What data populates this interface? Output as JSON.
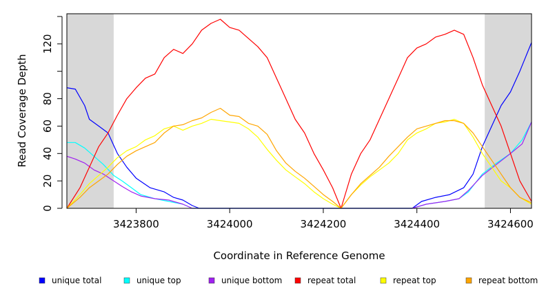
{
  "chart_data": {
    "type": "line",
    "title": "",
    "xlabel": "Coordinate in Reference Genome",
    "ylabel": "Read Coverage Depth",
    "xlim": [
      3423652,
      3424645
    ],
    "ylim": [
      0,
      142
    ],
    "x_ticks": [
      3423800,
      3424000,
      3424200,
      3424400,
      3424600
    ],
    "x_tick_labels": [
      "3423800",
      "3424000",
      "3424200",
      "3424400",
      "3424600"
    ],
    "y_ticks": [
      0,
      20,
      40,
      60,
      80,
      100,
      120,
      140
    ],
    "y_tick_labels": [
      "0",
      "20",
      "40",
      "60",
      "80",
      "",
      "120",
      ""
    ],
    "shaded_regions": [
      {
        "from": 3423652,
        "to": 3423752,
        "color": "#d8d8d8"
      },
      {
        "from": 3424545,
        "to": 3424645,
        "color": "#d8d8d8"
      }
    ],
    "grid": false,
    "legend_position": "bottom",
    "series": [
      {
        "name": "unique total",
        "color": "#0000ff",
        "points": [
          [
            3423652,
            88
          ],
          [
            3423670,
            87
          ],
          [
            3423690,
            75
          ],
          [
            3423700,
            65
          ],
          [
            3423720,
            60
          ],
          [
            3423740,
            55
          ],
          [
            3423760,
            40
          ],
          [
            3423780,
            30
          ],
          [
            3423800,
            22
          ],
          [
            3423830,
            15
          ],
          [
            3423860,
            12
          ],
          [
            3423880,
            8
          ],
          [
            3423900,
            6
          ],
          [
            3423920,
            2
          ],
          [
            3423935,
            0
          ],
          [
            3424390,
            0
          ],
          [
            3424410,
            5
          ],
          [
            3424440,
            8
          ],
          [
            3424470,
            10
          ],
          [
            3424500,
            15
          ],
          [
            3424520,
            25
          ],
          [
            3424540,
            45
          ],
          [
            3424560,
            60
          ],
          [
            3424580,
            75
          ],
          [
            3424600,
            85
          ],
          [
            3424620,
            100
          ],
          [
            3424645,
            121
          ]
        ]
      },
      {
        "name": "unique top",
        "color": "#00ffff",
        "points": [
          [
            3423652,
            48
          ],
          [
            3423670,
            48
          ],
          [
            3423690,
            44
          ],
          [
            3423710,
            38
          ],
          [
            3423730,
            32
          ],
          [
            3423752,
            24
          ],
          [
            3423770,
            20
          ],
          [
            3423790,
            15
          ],
          [
            3423810,
            10
          ],
          [
            3423840,
            7
          ],
          [
            3423870,
            5
          ],
          [
            3423900,
            3
          ],
          [
            3423920,
            0
          ],
          [
            3424390,
            0
          ],
          [
            3424420,
            3
          ],
          [
            3424460,
            5
          ],
          [
            3424490,
            7
          ],
          [
            3424510,
            12
          ],
          [
            3424540,
            25
          ],
          [
            3424570,
            33
          ],
          [
            3424600,
            40
          ],
          [
            3424625,
            50
          ],
          [
            3424645,
            63
          ]
        ]
      },
      {
        "name": "unique bottom",
        "color": "#a020f0",
        "points": [
          [
            3423652,
            38
          ],
          [
            3423670,
            36
          ],
          [
            3423690,
            33
          ],
          [
            3423710,
            28
          ],
          [
            3423730,
            25
          ],
          [
            3423752,
            20
          ],
          [
            3423770,
            16
          ],
          [
            3423790,
            12
          ],
          [
            3423810,
            9
          ],
          [
            3423840,
            7
          ],
          [
            3423870,
            6
          ],
          [
            3423900,
            3
          ],
          [
            3423920,
            0
          ],
          [
            3424390,
            0
          ],
          [
            3424420,
            3
          ],
          [
            3424460,
            5
          ],
          [
            3424490,
            7
          ],
          [
            3424510,
            13
          ],
          [
            3424540,
            24
          ],
          [
            3424570,
            32
          ],
          [
            3424600,
            40
          ],
          [
            3424625,
            47
          ],
          [
            3424645,
            63
          ]
        ]
      },
      {
        "name": "repeat total",
        "color": "#ff0000",
        "points": [
          [
            3423652,
            0
          ],
          [
            3423680,
            15
          ],
          [
            3423700,
            30
          ],
          [
            3423720,
            45
          ],
          [
            3423740,
            55
          ],
          [
            3423760,
            68
          ],
          [
            3423780,
            80
          ],
          [
            3423800,
            88
          ],
          [
            3423820,
            95
          ],
          [
            3423840,
            98
          ],
          [
            3423860,
            110
          ],
          [
            3423880,
            116
          ],
          [
            3423900,
            113
          ],
          [
            3423920,
            120
          ],
          [
            3423940,
            130
          ],
          [
            3423960,
            135
          ],
          [
            3423980,
            138
          ],
          [
            3424000,
            132
          ],
          [
            3424020,
            130
          ],
          [
            3424040,
            124
          ],
          [
            3424060,
            118
          ],
          [
            3424080,
            110
          ],
          [
            3424100,
            95
          ],
          [
            3424120,
            80
          ],
          [
            3424140,
            65
          ],
          [
            3424160,
            55
          ],
          [
            3424180,
            40
          ],
          [
            3424200,
            28
          ],
          [
            3424220,
            15
          ],
          [
            3424238,
            0
          ],
          [
            3424260,
            25
          ],
          [
            3424280,
            40
          ],
          [
            3424300,
            50
          ],
          [
            3424320,
            65
          ],
          [
            3424340,
            80
          ],
          [
            3424360,
            95
          ],
          [
            3424380,
            110
          ],
          [
            3424400,
            117
          ],
          [
            3424420,
            120
          ],
          [
            3424440,
            125
          ],
          [
            3424460,
            127
          ],
          [
            3424480,
            130
          ],
          [
            3424500,
            127
          ],
          [
            3424520,
            110
          ],
          [
            3424540,
            90
          ],
          [
            3424560,
            75
          ],
          [
            3424580,
            60
          ],
          [
            3424600,
            40
          ],
          [
            3424620,
            20
          ],
          [
            3424645,
            5
          ]
        ]
      },
      {
        "name": "repeat top",
        "color": "#ffff00",
        "points": [
          [
            3423652,
            0
          ],
          [
            3423680,
            10
          ],
          [
            3423700,
            18
          ],
          [
            3423720,
            24
          ],
          [
            3423740,
            30
          ],
          [
            3423760,
            37
          ],
          [
            3423780,
            42
          ],
          [
            3423800,
            45
          ],
          [
            3423820,
            50
          ],
          [
            3423840,
            53
          ],
          [
            3423860,
            58
          ],
          [
            3423880,
            60
          ],
          [
            3423900,
            57
          ],
          [
            3423920,
            60
          ],
          [
            3423940,
            62
          ],
          [
            3423960,
            65
          ],
          [
            3423980,
            64
          ],
          [
            3424000,
            63
          ],
          [
            3424020,
            62
          ],
          [
            3424040,
            58
          ],
          [
            3424060,
            52
          ],
          [
            3424080,
            43
          ],
          [
            3424100,
            35
          ],
          [
            3424120,
            28
          ],
          [
            3424140,
            23
          ],
          [
            3424160,
            18
          ],
          [
            3424180,
            12
          ],
          [
            3424200,
            7
          ],
          [
            3424220,
            3
          ],
          [
            3424238,
            0
          ],
          [
            3424260,
            10
          ],
          [
            3424280,
            17
          ],
          [
            3424300,
            23
          ],
          [
            3424320,
            28
          ],
          [
            3424340,
            33
          ],
          [
            3424360,
            40
          ],
          [
            3424380,
            50
          ],
          [
            3424400,
            55
          ],
          [
            3424420,
            58
          ],
          [
            3424440,
            62
          ],
          [
            3424460,
            63
          ],
          [
            3424480,
            65
          ],
          [
            3424500,
            62
          ],
          [
            3424520,
            52
          ],
          [
            3424540,
            40
          ],
          [
            3424560,
            30
          ],
          [
            3424580,
            20
          ],
          [
            3424600,
            15
          ],
          [
            3424620,
            8
          ],
          [
            3424645,
            3
          ]
        ]
      },
      {
        "name": "repeat bottom",
        "color": "#ffa500",
        "points": [
          [
            3423652,
            0
          ],
          [
            3423680,
            8
          ],
          [
            3423700,
            15
          ],
          [
            3423720,
            20
          ],
          [
            3423740,
            25
          ],
          [
            3423760,
            32
          ],
          [
            3423780,
            38
          ],
          [
            3423800,
            42
          ],
          [
            3423820,
            45
          ],
          [
            3423840,
            48
          ],
          [
            3423860,
            55
          ],
          [
            3423880,
            60
          ],
          [
            3423900,
            61
          ],
          [
            3423920,
            64
          ],
          [
            3423940,
            66
          ],
          [
            3423960,
            70
          ],
          [
            3423980,
            73
          ],
          [
            3424000,
            68
          ],
          [
            3424020,
            67
          ],
          [
            3424040,
            62
          ],
          [
            3424060,
            60
          ],
          [
            3424080,
            54
          ],
          [
            3424100,
            42
          ],
          [
            3424120,
            33
          ],
          [
            3424140,
            27
          ],
          [
            3424160,
            22
          ],
          [
            3424180,
            16
          ],
          [
            3424200,
            10
          ],
          [
            3424220,
            5
          ],
          [
            3424238,
            0
          ],
          [
            3424260,
            10
          ],
          [
            3424280,
            18
          ],
          [
            3424300,
            24
          ],
          [
            3424320,
            30
          ],
          [
            3424340,
            38
          ],
          [
            3424360,
            45
          ],
          [
            3424380,
            52
          ],
          [
            3424400,
            58
          ],
          [
            3424420,
            60
          ],
          [
            3424440,
            62
          ],
          [
            3424460,
            64
          ],
          [
            3424480,
            64
          ],
          [
            3424500,
            62
          ],
          [
            3424520,
            55
          ],
          [
            3424540,
            45
          ],
          [
            3424560,
            35
          ],
          [
            3424580,
            25
          ],
          [
            3424600,
            15
          ],
          [
            3424620,
            8
          ],
          [
            3424645,
            4
          ]
        ]
      }
    ]
  }
}
